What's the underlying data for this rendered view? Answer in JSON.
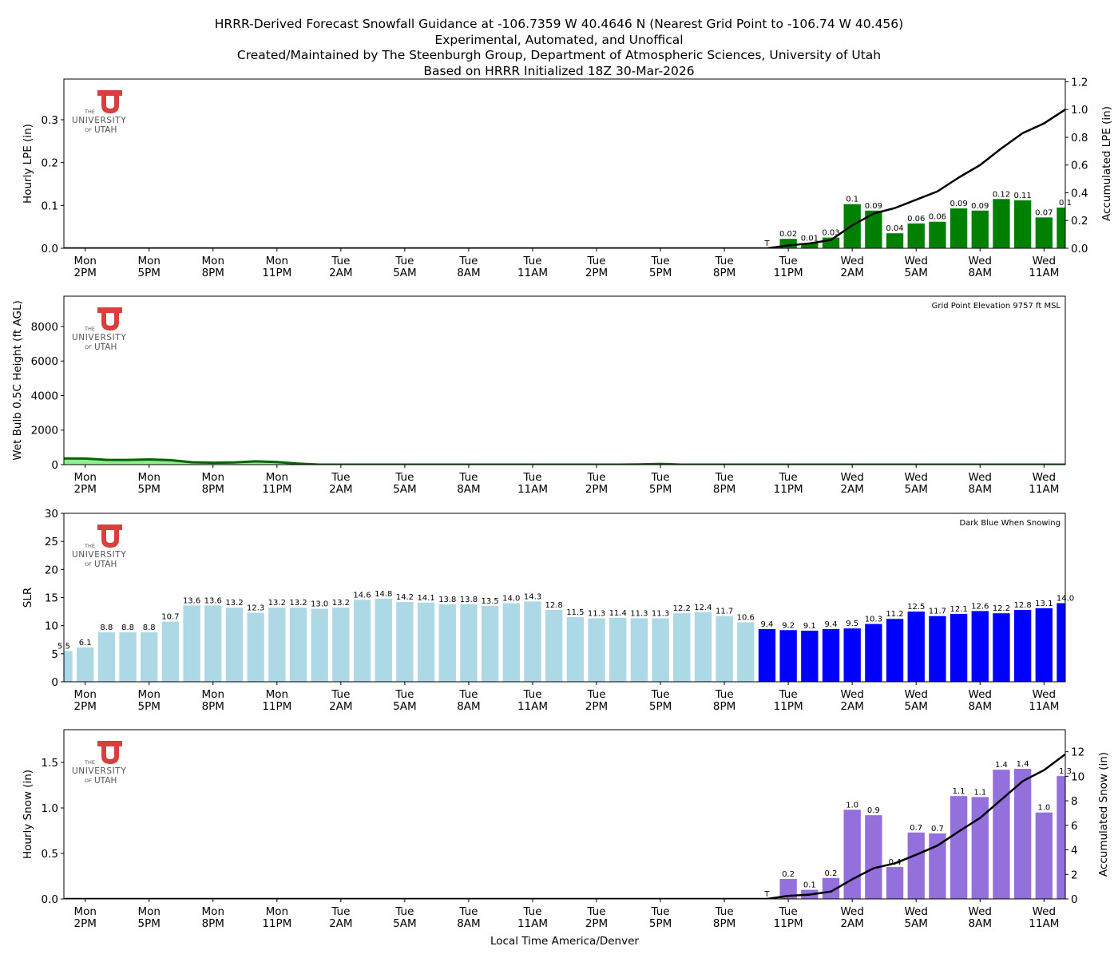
{
  "titles": [
    "HRRR-Derived Forecast Snowfall Guidance at -106.7359 W 40.4646 N (Nearest Grid Point to -106.74 W 40.456)",
    "Experimental, Automated, and Unoffical",
    "Created/Maintained by The Steenburgh Group, Department of Atmospheric Sciences, University of Utah",
    "Based on HRRR Initialized 18Z 30-Mar-2026"
  ],
  "logo": {
    "line1": "THE",
    "line2": "UNIVERSITY",
    "line3_a": "OF",
    "line3_b": "UTAH",
    "color": "#d83f3f"
  },
  "xaxis": {
    "xlabel": "Local Time America/Denver",
    "hours": 48,
    "first_hour": "Mon 1PM",
    "tick_index": [
      1,
      4,
      7,
      10,
      13,
      16,
      19,
      22,
      25,
      28,
      31,
      34,
      37,
      40,
      43,
      46
    ],
    "tick_labels": [
      [
        "Mon",
        "2PM"
      ],
      [
        "Mon",
        "5PM"
      ],
      [
        "Mon",
        "8PM"
      ],
      [
        "Mon",
        "11PM"
      ],
      [
        "Tue",
        "2AM"
      ],
      [
        "Tue",
        "5AM"
      ],
      [
        "Tue",
        "8AM"
      ],
      [
        "Tue",
        "11AM"
      ],
      [
        "Tue",
        "2PM"
      ],
      [
        "Tue",
        "5PM"
      ],
      [
        "Tue",
        "8PM"
      ],
      [
        "Tue",
        "11PM"
      ],
      [
        "Wed",
        "2AM"
      ],
      [
        "Wed",
        "5AM"
      ],
      [
        "Wed",
        "8AM"
      ],
      [
        "Wed",
        "11AM"
      ]
    ]
  },
  "chart_data": [
    {
      "type": "bar+line",
      "ylabel": "Hourly LPE (in)",
      "ylabel_right": "Accumulated LPE (in)",
      "ylim": [
        0,
        0.395
      ],
      "ylim_right": [
        0,
        1.22
      ],
      "yticks": [
        0,
        0.1,
        0.2,
        0.3
      ],
      "ytick_labels": [
        "0.0",
        "0.1",
        "0.2",
        "0.3"
      ],
      "yticks_right": [
        0,
        0.2,
        0.4,
        0.6,
        0.8,
        1.0,
        1.2
      ],
      "ytick_labels_right": [
        "0.0",
        "0.2",
        "0.4",
        "0.6",
        "0.8",
        "1.0",
        "1.2"
      ],
      "bar_color": "#008000",
      "line_color": "#000000",
      "bars_start_index": 33,
      "values": [
        0,
        0.022,
        0.012,
        0.025,
        0.103,
        0.088,
        0.035,
        0.058,
        0.062,
        0.093,
        0.088,
        0.115,
        0.112,
        0.072,
        0.095
      ],
      "labels": [
        "T",
        "0.02",
        "0.01",
        "0.03",
        "0.1",
        "0.09",
        "0.04",
        "0.06",
        "0.06",
        "0.09",
        "0.09",
        "0.12",
        "0.11",
        "0.07",
        "0.1"
      ],
      "accumulated": [
        0,
        0.02,
        0.035,
        0.06,
        0.165,
        0.25,
        0.29,
        0.35,
        0.41,
        0.51,
        0.6,
        0.72,
        0.83,
        0.9,
        1.0
      ]
    },
    {
      "type": "area",
      "ylabel": "Wet Bulb 0.5C Height (ft AGL)",
      "ylim": [
        0,
        9757
      ],
      "yticks": [
        0,
        2000,
        4000,
        6000,
        8000
      ],
      "ytick_labels": [
        "0",
        "2000",
        "4000",
        "6000",
        "8000"
      ],
      "fill_color": "#90ee90",
      "line_color": "#006400",
      "annotation": "Grid Point Elevation 9757 ft MSL",
      "values": [
        360,
        350,
        280,
        270,
        300,
        260,
        140,
        110,
        130,
        190,
        150,
        60,
        0,
        0,
        0,
        0,
        0,
        0,
        0,
        0,
        0,
        0,
        0,
        0,
        0,
        0,
        0,
        10,
        40,
        0,
        0,
        0,
        0,
        0,
        0,
        0,
        0,
        0,
        0,
        0,
        0,
        0,
        0,
        0,
        0,
        0,
        0,
        0
      ]
    },
    {
      "type": "bar",
      "ylabel": "SLR",
      "ylim": [
        0,
        30
      ],
      "yticks": [
        0,
        5,
        10,
        15,
        20,
        25,
        30
      ],
      "ytick_labels": [
        "0",
        "5",
        "10",
        "15",
        "20",
        "25",
        "30"
      ],
      "color_dry": "#add8e6",
      "color_snowing": "#0000ff",
      "snowing_from_index": 33,
      "annotation": "Dark Blue When Snowing",
      "values": [
        5.5,
        6.1,
        8.8,
        8.8,
        8.8,
        10.7,
        13.6,
        13.6,
        13.2,
        12.3,
        13.2,
        13.2,
        13.0,
        13.2,
        14.6,
        14.8,
        14.2,
        14.1,
        13.8,
        13.8,
        13.5,
        14.0,
        14.3,
        12.8,
        11.5,
        11.3,
        11.4,
        11.3,
        11.3,
        12.2,
        12.4,
        11.7,
        10.6,
        9.4,
        9.2,
        9.1,
        9.4,
        9.5,
        10.3,
        11.2,
        12.5,
        11.7,
        12.1,
        12.6,
        12.2,
        12.8,
        13.1,
        14.0
      ]
    },
    {
      "type": "bar+line",
      "ylabel": "Hourly Snow (in)",
      "ylabel_right": "Accumulated Snow (in)",
      "ylim": [
        0,
        1.86
      ],
      "ylim_right": [
        0,
        13.8
      ],
      "yticks": [
        0,
        0.5,
        1.0,
        1.5
      ],
      "ytick_labels": [
        "0.0",
        "0.5",
        "1.0",
        "1.5"
      ],
      "yticks_right": [
        0,
        2,
        4,
        6,
        8,
        10,
        12
      ],
      "ytick_labels_right": [
        "0",
        "2",
        "4",
        "6",
        "8",
        "10",
        "12"
      ],
      "bar_color": "#9370db",
      "line_color": "#000000",
      "bars_start_index": 33,
      "values": [
        0,
        0.22,
        0.1,
        0.23,
        0.98,
        0.92,
        0.35,
        0.73,
        0.72,
        1.13,
        1.12,
        1.42,
        1.43,
        0.95,
        1.35
      ],
      "labels": [
        "T",
        "0.2",
        "0.1",
        "0.2",
        "1.0",
        "0.9",
        "0.4",
        "0.7",
        "0.7",
        "1.1",
        "1.1",
        "1.4",
        "1.4",
        "1.0",
        "1.3"
      ],
      "accumulated": [
        0,
        0.25,
        0.35,
        0.6,
        1.6,
        2.5,
        2.9,
        3.6,
        4.35,
        5.5,
        6.6,
        8.1,
        9.6,
        10.5,
        11.8
      ]
    }
  ]
}
